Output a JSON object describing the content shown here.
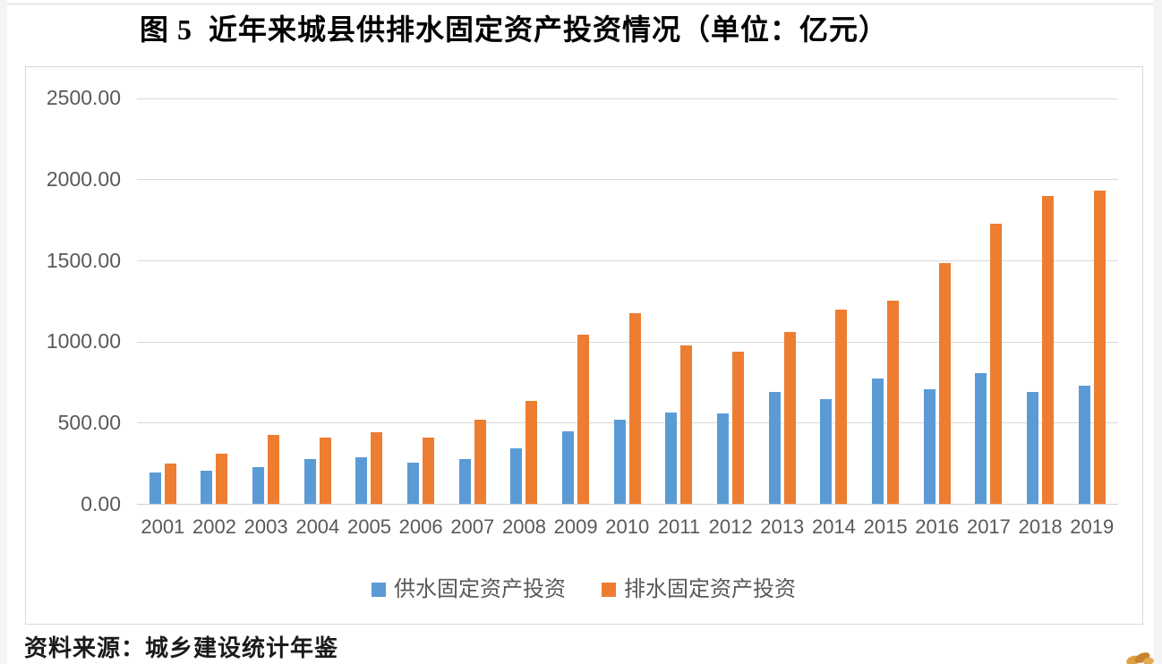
{
  "page": {
    "source_note": "资料来源：城乡建设统计年鉴"
  },
  "chart_data": {
    "type": "bar",
    "title": "图 5  近年来城县供排水固定资产投资情况（单位：亿元）",
    "unit": "亿元",
    "categories": [
      "2001",
      "2002",
      "2003",
      "2004",
      "2005",
      "2006",
      "2007",
      "2008",
      "2009",
      "2010",
      "2011",
      "2012",
      "2013",
      "2014",
      "2015",
      "2016",
      "2017",
      "2018",
      "2019"
    ],
    "series": [
      {
        "name": "供水固定资产投资",
        "color": "#5B9BD5",
        "values": [
          195,
          205,
          225,
          275,
          288,
          255,
          278,
          343,
          446,
          517,
          560,
          556,
          691,
          645,
          773,
          705,
          804,
          688,
          726
        ]
      },
      {
        "name": "排水固定资产投资",
        "color": "#ED7D31",
        "values": [
          250,
          309,
          422,
          410,
          441,
          407,
          521,
          637,
          1040,
          1174,
          975,
          937,
          1057,
          1196,
          1250,
          1486,
          1727,
          1896,
          1928
        ]
      }
    ],
    "ylim": [
      0,
      2500
    ],
    "ytick_values": [
      0,
      500,
      1000,
      1500,
      2000,
      2500
    ],
    "ytick_labels": [
      "0.00",
      "500.00",
      "1000.00",
      "1500.00",
      "2000.00",
      "2500.00"
    ],
    "grid": true,
    "legend_position": "bottom",
    "accent_colors": {
      "grid": "#d9d9d9",
      "tick_text": "#595959"
    }
  }
}
